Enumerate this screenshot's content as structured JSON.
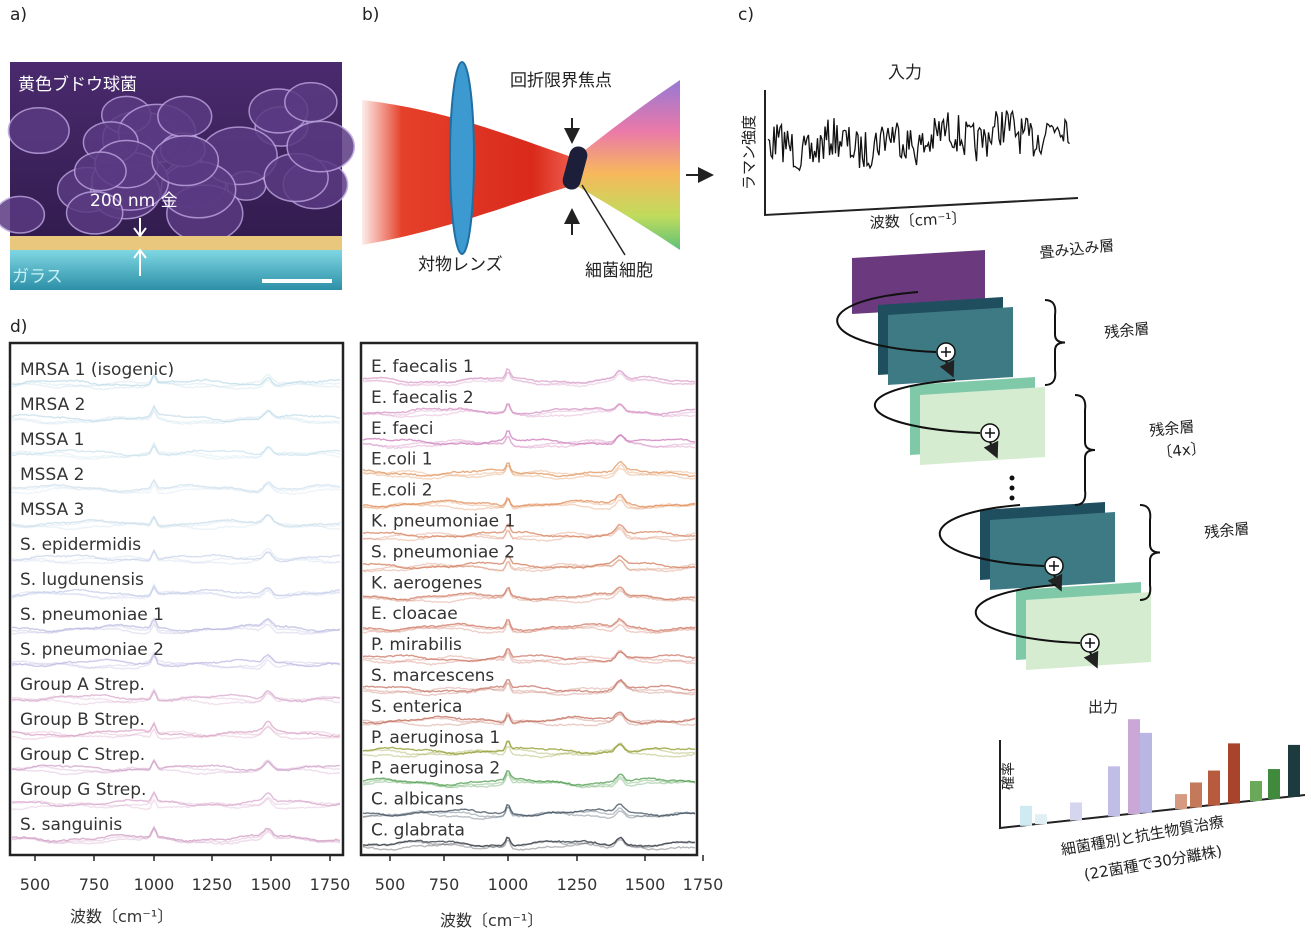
{
  "panels": {
    "a": {
      "label": "a)",
      "species": "黄色ブドウ球菌",
      "thickness": "200 nm 金",
      "substrate": "ガラス"
    },
    "b": {
      "label": "b)",
      "focus": "回折限界焦点",
      "lens": "対物レンズ",
      "cell": "細菌細胞"
    },
    "c": {
      "label": "c)",
      "input": "入力",
      "y_label": "ラマン強度",
      "x_label": "波数〔cm⁻¹〕",
      "conv": "畳み込み層",
      "res1": "残余層",
      "res2": "残余層",
      "res2_note": "〔4x〕",
      "res3": "残余層",
      "output": "出力",
      "prob": "確率",
      "out_label1": "細菌種別と抗生物質治療",
      "out_label2": "(22菌種で30分離株)"
    },
    "d": {
      "label": "d)",
      "left": {
        "labels": [
          "MRSA 1 (isogenic)",
          "MRSA 2",
          "MSSA 1",
          "MSSA 2",
          "MSSA 3",
          "S. epidermidis",
          "S. lugdunensis",
          "S. pneumoniae 1",
          "S. pneumoniae 2",
          "Group A Strep.",
          "Group B Strep.",
          "Group C Strep.",
          "Group G Strep.",
          "S. sanguinis"
        ],
        "ticks": [
          "500",
          "750",
          "1000",
          "1250",
          "1500",
          "1750"
        ],
        "x_label": "波数〔cm⁻¹〕"
      },
      "right": {
        "labels": [
          "E. faecalis 1",
          "E. faecalis 2",
          "E. faeci",
          "E.coli 1",
          "E.coli 2",
          "K. pneumoniae 1",
          "S. pneumoniae 2",
          "K. aerogenes",
          "E. cloacae",
          "P. mirabilis",
          "S. marcescens",
          "S. enterica",
          "P. aeruginosa 1",
          "P. aeruginosa 2",
          "C. albicans",
          "C. glabrata"
        ],
        "ticks": [
          "500",
          "750",
          "1000",
          "1250",
          "1500",
          "1750"
        ],
        "x_label": "波数〔cm⁻¹〕"
      }
    }
  }
}
